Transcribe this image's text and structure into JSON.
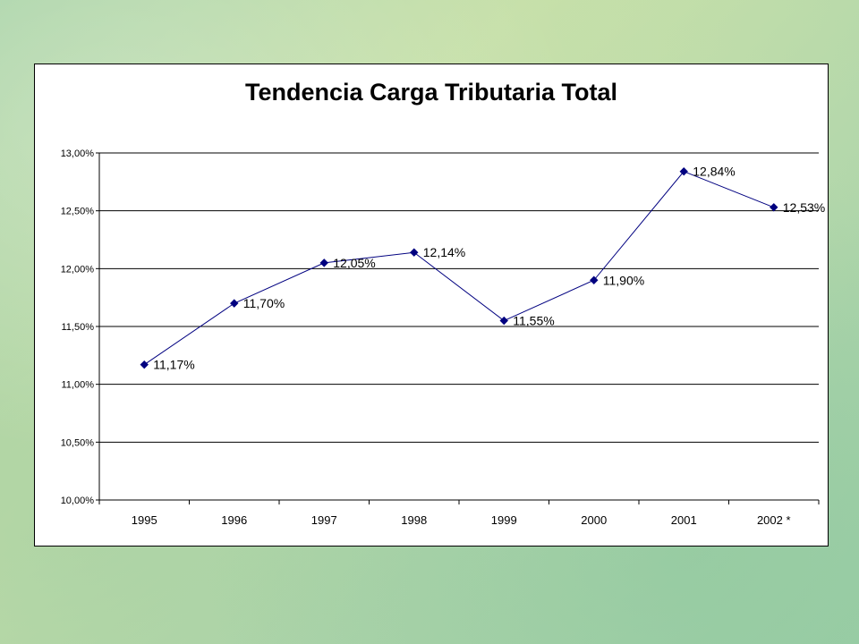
{
  "chart_data": {
    "type": "line",
    "title": "Tendencia Carga Tributaria Total",
    "categories": [
      "1995",
      "1996",
      "1997",
      "1998",
      "1999",
      "2000",
      "2001",
      "2002 *"
    ],
    "series": [
      {
        "values": [
          11.17,
          11.7,
          12.05,
          12.14,
          11.55,
          11.9,
          12.84,
          12.53
        ],
        "data_labels": [
          "11,17%",
          "11,70%",
          "12,05%",
          "12,14%",
          "11,55%",
          "11,90%",
          "12,84%",
          "12,53%"
        ],
        "color": "#000080"
      }
    ],
    "ylim": [
      10.0,
      13.0
    ],
    "yticks": [
      10.0,
      10.5,
      11.0,
      11.5,
      12.0,
      12.5,
      13.0
    ],
    "ytick_labels": [
      "10,00%",
      "10,50%",
      "11,00%",
      "11,50%",
      "12,00%",
      "12,50%",
      "13,00%"
    ],
    "grid": true,
    "legend": "none"
  }
}
